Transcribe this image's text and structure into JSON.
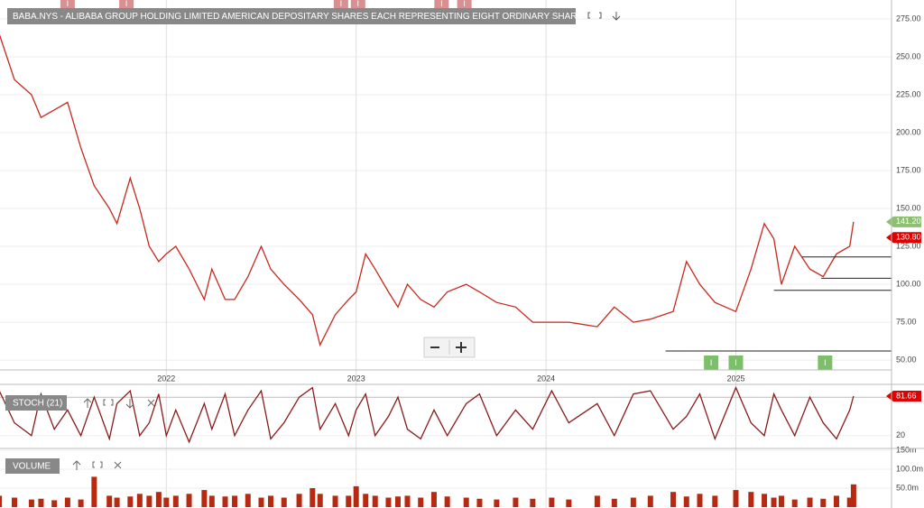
{
  "chart_data": [
    {
      "type": "line",
      "title": "BABA.NYS - ALIBABA GROUP HOLDING LIMITED AMERICAN DEPOSITARY SHARES EACH REPRESENTING EIGHT ORDINARY SHARE",
      "x": [
        2021.12,
        2021.2,
        2021.29,
        2021.34,
        2021.41,
        2021.48,
        2021.55,
        2021.62,
        2021.7,
        2021.74,
        2021.81,
        2021.86,
        2021.91,
        2021.96,
        2022.0,
        2022.05,
        2022.12,
        2022.2,
        2022.24,
        2022.31,
        2022.36,
        2022.43,
        2022.5,
        2022.55,
        2022.62,
        2022.7,
        2022.77,
        2022.81,
        2022.89,
        2022.96,
        2023.0,
        2023.05,
        2023.1,
        2023.17,
        2023.22,
        2023.27,
        2023.34,
        2023.41,
        2023.48,
        2023.58,
        2023.65,
        2023.74,
        2023.84,
        2023.93,
        2024.03,
        2024.12,
        2024.27,
        2024.36,
        2024.46,
        2024.55,
        2024.67,
        2024.74,
        2024.81,
        2024.89,
        2025.0,
        2025.08,
        2025.15,
        2025.2,
        2025.24,
        2025.31,
        2025.39,
        2025.46,
        2025.53,
        2025.6,
        2025.62
      ],
      "series": [
        {
          "color": "#c8281e",
          "values": [
            265,
            235,
            225,
            210,
            215,
            220,
            190,
            165,
            150,
            140,
            170,
            150,
            125,
            115,
            120,
            125,
            110,
            90,
            110,
            90,
            90,
            105,
            125,
            110,
            100,
            90,
            80,
            60,
            80,
            90,
            95,
            120,
            110,
            95,
            85,
            100,
            90,
            85,
            95,
            100,
            95,
            88,
            85,
            75,
            75,
            75,
            72,
            85,
            75,
            77,
            82,
            115,
            100,
            88,
            82,
            110,
            140,
            130,
            100,
            125,
            110,
            105,
            120,
            125,
            141.2
          ]
        }
      ],
      "xlim": [
        2021.124,
        2025.82
      ],
      "xticks": [
        2022,
        2023,
        2024,
        2025
      ],
      "ylim": [
        43.5,
        284.5
      ],
      "yticks": [
        {
          "value": 50,
          "label": "50.00"
        },
        {
          "value": 75,
          "label": "75.00"
        },
        {
          "value": 100,
          "label": "100.00"
        },
        {
          "value": 125,
          "label": "125.00"
        },
        {
          "value": 150,
          "label": "150.00"
        },
        {
          "value": 175,
          "label": "175.00"
        },
        {
          "value": 200,
          "label": "200.00"
        },
        {
          "value": 225,
          "label": "225.00"
        },
        {
          "value": 250,
          "label": "250.00"
        },
        {
          "value": 275,
          "label": "275.00"
        }
      ],
      "grid": true,
      "price_tags": [
        {
          "value": 141.2,
          "label": "141.20",
          "color": "#8cc070"
        },
        {
          "value": 130.8,
          "label": "130.80",
          "color": "#e00000"
        }
      ],
      "levels": [
        {
          "value": 118,
          "from": 2025.35
        },
        {
          "value": 104,
          "from": 2025.45
        },
        {
          "value": 96,
          "from": 2025.2
        },
        {
          "value": 56,
          "from": 2024.63
        }
      ],
      "top_events": {
        "label": "I",
        "color": "#d99090",
        "x": [
          2021.48,
          2021.79,
          2022.92,
          2023.01,
          2023.45,
          2023.57
        ]
      },
      "bottom_events": {
        "label": "I",
        "color": "#7cbf6a",
        "x": [
          2024.87,
          2025.0,
          2025.47
        ]
      }
    },
    {
      "type": "line",
      "title": "STOCH (21)",
      "x": [
        2021.12,
        2021.2,
        2021.29,
        2021.34,
        2021.41,
        2021.48,
        2021.55,
        2021.62,
        2021.7,
        2021.74,
        2021.81,
        2021.86,
        2021.91,
        2021.96,
        2022.0,
        2022.05,
        2022.12,
        2022.2,
        2022.24,
        2022.31,
        2022.36,
        2022.43,
        2022.5,
        2022.55,
        2022.62,
        2022.7,
        2022.77,
        2022.81,
        2022.89,
        2022.96,
        2023.0,
        2023.05,
        2023.1,
        2023.17,
        2023.22,
        2023.27,
        2023.34,
        2023.41,
        2023.48,
        2023.58,
        2023.65,
        2023.74,
        2023.84,
        2023.93,
        2024.03,
        2024.12,
        2024.27,
        2024.36,
        2024.46,
        2024.55,
        2024.67,
        2024.74,
        2024.81,
        2024.89,
        2025.0,
        2025.08,
        2025.15,
        2025.2,
        2025.24,
        2025.31,
        2025.39,
        2025.46,
        2025.53,
        2025.6,
        2025.62
      ],
      "series": [
        {
          "color": "#8b1a1a",
          "values": [
            90,
            40,
            20,
            85,
            30,
            60,
            20,
            80,
            15,
            70,
            90,
            20,
            40,
            85,
            20,
            60,
            10,
            70,
            30,
            85,
            20,
            60,
            90,
            15,
            40,
            80,
            95,
            30,
            70,
            20,
            60,
            85,
            20,
            50,
            80,
            30,
            15,
            60,
            20,
            70,
            85,
            20,
            60,
            30,
            90,
            40,
            70,
            20,
            85,
            90,
            30,
            50,
            85,
            15,
            95,
            40,
            20,
            85,
            60,
            20,
            80,
            40,
            15,
            60,
            81.66
          ]
        }
      ],
      "xlim": [
        2021.124,
        2025.82
      ],
      "ylim": [
        0,
        100
      ],
      "yticks": [
        20
      ],
      "ref_lines": [
        80
      ],
      "value_tag": {
        "value": 81.66,
        "color": "#e00000"
      }
    },
    {
      "type": "bar",
      "title": "VOLUME",
      "x": [
        2021.12,
        2021.2,
        2021.29,
        2021.34,
        2021.41,
        2021.48,
        2021.55,
        2021.62,
        2021.7,
        2021.74,
        2021.81,
        2021.86,
        2021.91,
        2021.96,
        2022.0,
        2022.05,
        2022.12,
        2022.2,
        2022.24,
        2022.31,
        2022.36,
        2022.43,
        2022.5,
        2022.55,
        2022.62,
        2022.7,
        2022.77,
        2022.81,
        2022.89,
        2022.96,
        2023.0,
        2023.05,
        2023.1,
        2023.17,
        2023.22,
        2023.27,
        2023.34,
        2023.41,
        2023.48,
        2023.58,
        2023.65,
        2023.74,
        2023.84,
        2023.93,
        2024.03,
        2024.12,
        2024.27,
        2024.36,
        2024.46,
        2024.55,
        2024.67,
        2024.74,
        2024.81,
        2024.89,
        2025.0,
        2025.08,
        2025.15,
        2025.2,
        2025.24,
        2025.31,
        2025.39,
        2025.46,
        2025.53,
        2025.6,
        2025.62
      ],
      "series": [
        {
          "color": "#b82a10",
          "values": [
            30,
            25,
            20,
            22,
            18,
            25,
            20,
            80,
            30,
            25,
            28,
            35,
            30,
            40,
            25,
            30,
            35,
            45,
            30,
            28,
            30,
            35,
            25,
            30,
            25,
            35,
            50,
            35,
            30,
            30,
            55,
            35,
            30,
            25,
            28,
            30,
            25,
            40,
            28,
            25,
            22,
            20,
            25,
            22,
            25,
            20,
            30,
            22,
            25,
            30,
            40,
            28,
            35,
            30,
            45,
            40,
            35,
            25,
            30,
            20,
            25,
            22,
            30,
            25,
            60
          ]
        }
      ],
      "xlim": [
        2021.124,
        2025.82
      ],
      "ylim": [
        0,
        150
      ],
      "yticks": [
        {
          "value": 50,
          "label": "50.0m"
        },
        {
          "value": 100,
          "label": "100.0m"
        },
        {
          "value": 150,
          "label": "150m"
        }
      ]
    }
  ]
}
